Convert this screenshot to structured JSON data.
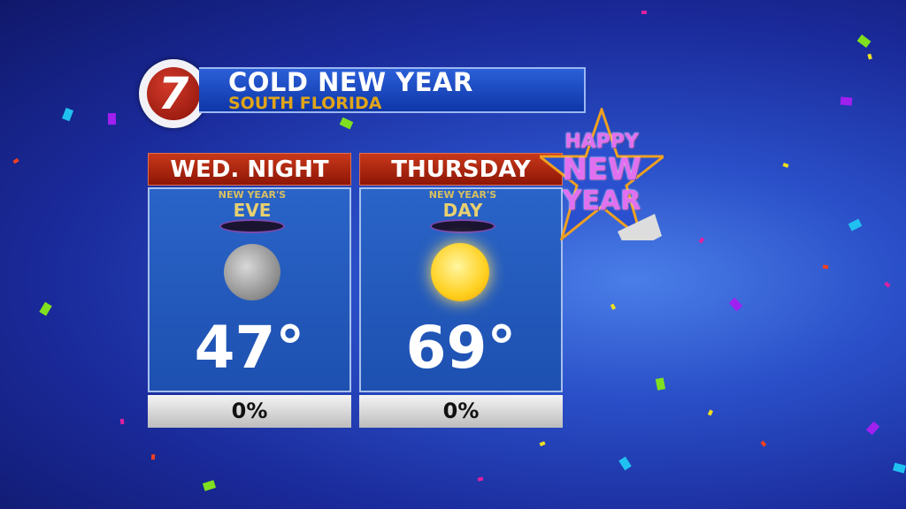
{
  "header": {
    "logo": "7",
    "title": "COLD NEW YEAR",
    "subtitle": "SOUTH FLORIDA"
  },
  "panels": [
    {
      "day": "WED. NIGHT",
      "badge_line1": "NEW YEAR'S",
      "badge_line2": "EVE",
      "icon": "moon-icon",
      "temp": "47°",
      "precip": "0%"
    },
    {
      "day": "THURSDAY",
      "badge_line1": "NEW YEAR'S",
      "badge_line2": "DAY",
      "icon": "sun-icon",
      "temp": "69°",
      "precip": "0%"
    }
  ],
  "decoration": {
    "line1": "HAPPY",
    "line2": "NEW",
    "line3": "YEAR"
  },
  "colors": {
    "header_red": "#b02810",
    "title_gold": "#e0a418",
    "panel_blue": "#2a64c8"
  }
}
